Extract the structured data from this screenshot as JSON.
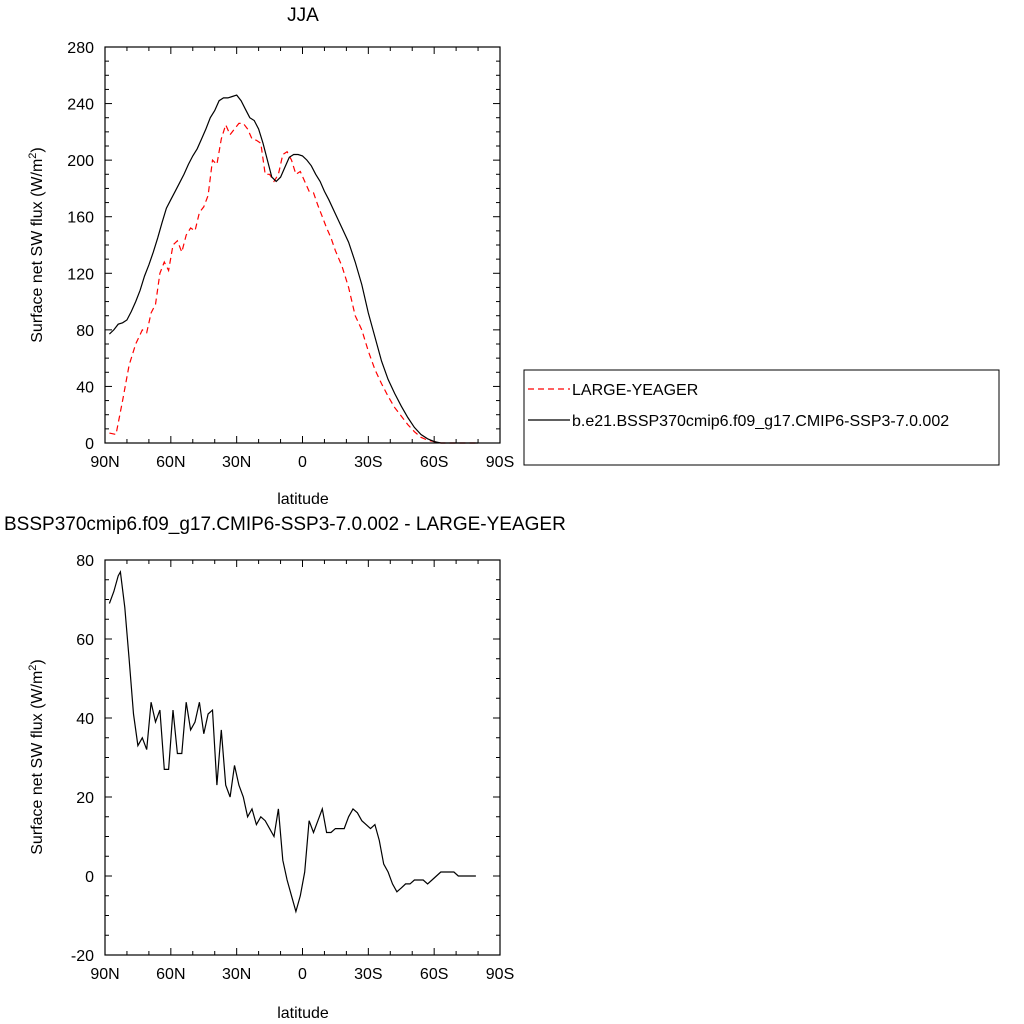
{
  "chart_data": [
    {
      "type": "line",
      "title": "JJA",
      "xlabel": "latitude",
      "ylabel": "Surface net SW flux (W/m",
      "ylabel_sup": "2",
      "ylabel_close": ")",
      "xlim": [
        90,
        -90
      ],
      "ylim": [
        0,
        280
      ],
      "xticks": [
        90,
        60,
        30,
        0,
        -30,
        -60,
        -90
      ],
      "xtick_labels": [
        "90N",
        "60N",
        "30N",
        "0",
        "30S",
        "60S",
        "90S"
      ],
      "yticks": [
        0,
        40,
        80,
        120,
        160,
        200,
        240,
        280
      ],
      "ytick_labels": [
        "0",
        "40",
        "80",
        "120",
        "160",
        "200",
        "240",
        "280"
      ],
      "legend_position": "right",
      "series": [
        {
          "name": "LARGE-YEAGER",
          "color": "#ff0000",
          "dash": "dashed",
          "x": [
            88,
            85,
            82,
            79,
            76,
            73,
            71,
            69,
            67,
            65,
            63,
            61,
            59,
            57,
            55,
            53,
            51,
            49,
            47,
            45,
            43,
            41,
            39,
            37,
            35,
            33,
            31,
            29,
            27,
            25,
            23,
            21,
            19,
            17,
            15,
            13,
            11,
            9,
            7,
            5,
            3,
            1,
            -1,
            -3,
            -5,
            -7,
            -9,
            -11,
            -13,
            -15,
            -18,
            -21,
            -24,
            -27,
            -30,
            -33,
            -36,
            -39,
            -42,
            -45,
            -48,
            -51,
            -54,
            -57,
            -60,
            -63,
            -66,
            -69,
            -72,
            -75,
            -78,
            -80
          ],
          "y": [
            7,
            6,
            30,
            55,
            70,
            80,
            78,
            92,
            98,
            120,
            128,
            122,
            140,
            143,
            135,
            147,
            152,
            150,
            163,
            167,
            175,
            200,
            197,
            215,
            225,
            218,
            222,
            226,
            226,
            222,
            215,
            214,
            212,
            190,
            190,
            185,
            190,
            204,
            206,
            200,
            190,
            192,
            185,
            178,
            177,
            168,
            160,
            152,
            145,
            136,
            125,
            110,
            90,
            80,
            65,
            52,
            42,
            33,
            25,
            19,
            13,
            8,
            4,
            2,
            1,
            0,
            0,
            0,
            0,
            0,
            0,
            0
          ]
        },
        {
          "name": "b.e21.BSSP370cmip6.f09_g17.CMIP6-SSP3-7.0.002",
          "color": "#000000",
          "dash": "solid",
          "x": [
            88,
            86,
            84,
            82,
            80,
            78,
            76,
            74,
            72,
            70,
            68,
            66,
            64,
            62,
            60,
            58,
            56,
            54,
            52,
            50,
            48,
            46,
            44,
            42,
            40,
            38,
            36,
            34,
            32,
            30,
            28,
            26,
            24,
            22,
            20,
            18,
            16,
            14,
            12,
            10,
            8,
            6,
            4,
            2,
            0,
            -2,
            -4,
            -6,
            -8,
            -10,
            -12,
            -15,
            -18,
            -21,
            -24,
            -27,
            -30,
            -33,
            -36,
            -39,
            -42,
            -45,
            -48,
            -51,
            -54,
            -57,
            -60,
            -63,
            -66,
            -69,
            -72,
            -75,
            -78,
            -80
          ],
          "y": [
            77,
            80,
            84,
            85,
            87,
            93,
            100,
            108,
            118,
            126,
            135,
            145,
            156,
            166,
            172,
            178,
            184,
            190,
            197,
            203,
            208,
            215,
            222,
            230,
            235,
            242,
            244,
            244,
            245,
            246,
            242,
            236,
            230,
            228,
            222,
            212,
            200,
            188,
            185,
            188,
            195,
            202,
            204,
            204,
            203,
            200,
            196,
            190,
            185,
            178,
            172,
            162,
            152,
            142,
            128,
            112,
            92,
            75,
            58,
            45,
            35,
            26,
            18,
            11,
            6,
            3,
            1,
            0,
            0,
            0,
            0,
            0,
            0,
            0
          ]
        }
      ]
    },
    {
      "type": "line",
      "title": "BSSP370cmip6.f09_g17.CMIP6-SSP3-7.0.002 - LARGE-YEAGER",
      "xlabel": "latitude",
      "ylabel": "Surface net SW flux (W/m",
      "ylabel_sup": "2",
      "ylabel_close": ")",
      "xlim": [
        90,
        -90
      ],
      "ylim": [
        -20,
        80
      ],
      "xticks": [
        90,
        60,
        30,
        0,
        -30,
        -60,
        -90
      ],
      "xtick_labels": [
        "90N",
        "60N",
        "30N",
        "0",
        "30S",
        "60S",
        "90S"
      ],
      "yticks": [
        -20,
        0,
        20,
        40,
        60,
        80
      ],
      "ytick_labels": [
        "-20",
        "0",
        "20",
        "40",
        "60",
        "80"
      ],
      "series": [
        {
          "color": "#000000",
          "dash": "solid",
          "x": [
            88,
            86,
            84,
            83,
            81,
            79,
            77,
            75,
            73,
            71,
            69,
            67,
            65,
            63,
            61,
            59,
            57,
            55,
            53,
            51,
            49,
            47,
            45,
            43,
            41,
            39,
            37,
            35,
            33,
            31,
            29,
            27,
            25,
            23,
            21,
            19,
            17,
            15,
            13,
            11,
            9,
            7,
            5,
            3,
            1,
            -1,
            -3,
            -5,
            -7,
            -9,
            -11,
            -13,
            -15,
            -17,
            -19,
            -21,
            -23,
            -25,
            -27,
            -29,
            -31,
            -33,
            -35,
            -37,
            -39,
            -41,
            -43,
            -45,
            -47,
            -49,
            -51,
            -53,
            -55,
            -57,
            -59,
            -61,
            -63,
            -65,
            -67,
            -69,
            -71,
            -73,
            -75,
            -77,
            -79
          ],
          "y": [
            69,
            72,
            76,
            77,
            68,
            55,
            41,
            33,
            35,
            32,
            44,
            39,
            42,
            27,
            27,
            42,
            31,
            31,
            44,
            37,
            39,
            44,
            36,
            41,
            42,
            23,
            37,
            23,
            20,
            28,
            23,
            20,
            15,
            17,
            13,
            15,
            14,
            12,
            10,
            17,
            4,
            -1,
            -5,
            -9,
            -5,
            1,
            14,
            11,
            14,
            17,
            11,
            11,
            12,
            12,
            12,
            15,
            17,
            16,
            14,
            13,
            12,
            13,
            9,
            3,
            1,
            -2,
            -4,
            -3,
            -2,
            -2,
            -1,
            -1,
            -1,
            -2,
            -1,
            0,
            1,
            1,
            1,
            1,
            0,
            0,
            0,
            0,
            0
          ]
        }
      ]
    }
  ]
}
